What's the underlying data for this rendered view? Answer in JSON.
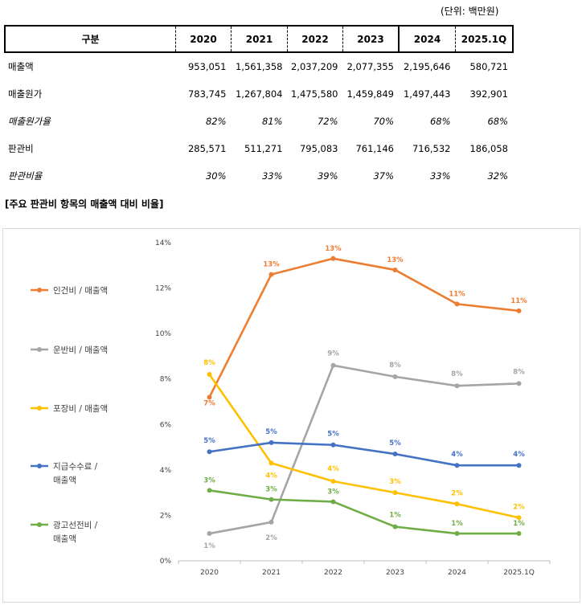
{
  "unit_label": "(단위: 백만원)",
  "table": {
    "headers": [
      "구분",
      "2020",
      "2021",
      "2022",
      "2023",
      "2024",
      "2025.1Q"
    ],
    "rows": [
      {
        "label": "매출액",
        "values": [
          "953,051",
          "1,561,358",
          "2,037,209",
          "2,077,355",
          "2,195,646",
          "580,721"
        ],
        "italic": false
      },
      {
        "label": "매출원가",
        "values": [
          "783,745",
          "1,267,804",
          "1,475,580",
          "1,459,849",
          "1,497,443",
          "392,901"
        ],
        "italic": false
      },
      {
        "label": "매출원가율",
        "values": [
          "82%",
          "81%",
          "72%",
          "70%",
          "68%",
          "68%"
        ],
        "italic": true
      },
      {
        "label": "판관비",
        "values": [
          "285,571",
          "511,271",
          "795,083",
          "761,146",
          "716,532",
          "186,058"
        ],
        "italic": false
      },
      {
        "label": "판관비율",
        "values": [
          "30%",
          "33%",
          "39%",
          "37%",
          "33%",
          "32%"
        ],
        "italic": true
      }
    ]
  },
  "chart_title": "[주요 판관비 항목의 매출액 대비 비율]",
  "chart_data": {
    "type": "line",
    "title": "",
    "xlabel": "",
    "ylabel": "",
    "categories": [
      "2020",
      "2021",
      "2022",
      "2023",
      "2024",
      "2025.1Q"
    ],
    "ylim": [
      0,
      14
    ],
    "yticks": [
      "0%",
      "2%",
      "4%",
      "6%",
      "8%",
      "10%",
      "12%",
      "14%"
    ],
    "legend_position": "left",
    "series": [
      {
        "name": "인건비 / 매출액",
        "legend_lines": [
          "인건비 / 매출액"
        ],
        "color": "#ED7D31",
        "values": [
          7.2,
          12.6,
          13.3,
          12.8,
          11.3,
          11.0
        ],
        "labels": [
          "7%",
          "13%",
          "13%",
          "13%",
          "11%",
          "11%"
        ]
      },
      {
        "name": "운반비 / 매출액",
        "legend_lines": [
          "운반비 / 매출액"
        ],
        "color": "#A5A5A5",
        "values": [
          1.2,
          1.7,
          8.6,
          8.1,
          7.7,
          7.8
        ],
        "labels": [
          "1%",
          "2%",
          "9%",
          "8%",
          "8%",
          "8%"
        ]
      },
      {
        "name": "포장비 / 매출액",
        "legend_lines": [
          "포장비 / 매출액"
        ],
        "color": "#FFC000",
        "values": [
          8.2,
          4.3,
          3.5,
          3.0,
          2.5,
          1.9
        ],
        "labels": [
          "8%",
          "4%",
          "4%",
          "3%",
          "2%",
          "2%"
        ]
      },
      {
        "name": "지급수수료 / 매출액",
        "legend_lines": [
          "지급수수료 /",
          "매출액"
        ],
        "color": "#4472C4",
        "values": [
          4.8,
          5.2,
          5.1,
          4.7,
          4.2,
          4.2
        ],
        "labels": [
          "5%",
          "5%",
          "5%",
          "5%",
          "4%",
          "4%"
        ]
      },
      {
        "name": "광고선전비 / 매출액",
        "legend_lines": [
          "광고선전비 /",
          "매출액"
        ],
        "color": "#70AD47",
        "values": [
          3.1,
          2.7,
          2.6,
          1.5,
          1.2,
          1.2
        ],
        "labels": [
          "3%",
          "3%",
          "3%",
          "1%",
          "1%",
          "1%"
        ]
      }
    ]
  }
}
